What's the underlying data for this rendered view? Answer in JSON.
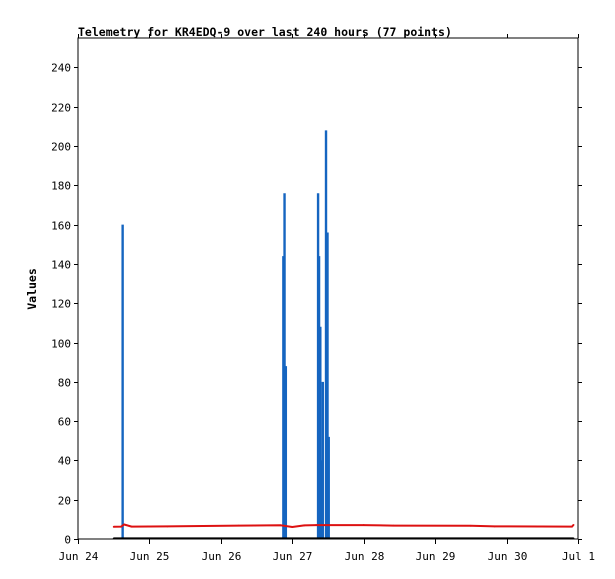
{
  "chart_data": {
    "type": "line",
    "title": "Telemetry for KR4EDQ-9 over last 240 hours (77 points)",
    "xlabel": "",
    "ylabel": "Values",
    "x_range": [
      "2024-06-24",
      "2024-07-01"
    ],
    "x_ticks": [
      {
        "date": "2024-06-24",
        "label": "Jun 24"
      },
      {
        "date": "2024-06-25",
        "label": "Jun 25"
      },
      {
        "date": "2024-06-26",
        "label": "Jun 26"
      },
      {
        "date": "2024-06-27",
        "label": "Jun 27"
      },
      {
        "date": "2024-06-28",
        "label": "Jun 28"
      },
      {
        "date": "2024-06-29",
        "label": "Jun 29"
      },
      {
        "date": "2024-06-30",
        "label": "Jun 30"
      },
      {
        "date": "2024-07-01",
        "label": "Jul 1"
      }
    ],
    "ylim": [
      0,
      255
    ],
    "y_ticks": [
      0,
      20,
      40,
      60,
      80,
      100,
      120,
      140,
      160,
      180,
      200,
      220,
      240
    ],
    "grid": false,
    "legend": "none",
    "series": [
      {
        "color": "#1565c0",
        "style": "impulse",
        "points": [
          {
            "x": "2024-06-24 14:24",
            "y": 0
          },
          {
            "x": "2024-06-24 15:00",
            "y": 160
          },
          {
            "x": "2024-06-26 21:00",
            "y": 144
          },
          {
            "x": "2024-06-26 21:24",
            "y": 176
          },
          {
            "x": "2024-06-26 21:50",
            "y": 88
          },
          {
            "x": "2024-06-27 08:40",
            "y": 176
          },
          {
            "x": "2024-06-27 09:00",
            "y": 144
          },
          {
            "x": "2024-06-27 09:25",
            "y": 108
          },
          {
            "x": "2024-06-27 09:50",
            "y": 40
          },
          {
            "x": "2024-06-27 10:15",
            "y": 80
          },
          {
            "x": "2024-06-27 11:20",
            "y": 208
          },
          {
            "x": "2024-06-27 11:50",
            "y": 156
          },
          {
            "x": "2024-06-27 12:15",
            "y": 52
          }
        ]
      },
      {
        "color": "#dd1111",
        "style": "line",
        "points": [
          {
            "x": "2024-06-24 12:00",
            "y": 6.2
          },
          {
            "x": "2024-06-24 14:30",
            "y": 6.3
          },
          {
            "x": "2024-06-24 15:30",
            "y": 7.4
          },
          {
            "x": "2024-06-24 18:00",
            "y": 6.3
          },
          {
            "x": "2024-06-25 06:00",
            "y": 6.4
          },
          {
            "x": "2024-06-26 06:00",
            "y": 6.8
          },
          {
            "x": "2024-06-26 20:00",
            "y": 7.0
          },
          {
            "x": "2024-06-27 00:00",
            "y": 6.1
          },
          {
            "x": "2024-06-27 04:00",
            "y": 6.9
          },
          {
            "x": "2024-06-27 08:00",
            "y": 7.1
          },
          {
            "x": "2024-06-28 00:00",
            "y": 7.1
          },
          {
            "x": "2024-06-28 10:00",
            "y": 6.8
          },
          {
            "x": "2024-06-29 12:00",
            "y": 6.7
          },
          {
            "x": "2024-06-29 20:00",
            "y": 6.4
          },
          {
            "x": "2024-06-30 22:00",
            "y": 6.3
          },
          {
            "x": "2024-06-30 22:30",
            "y": 7.2
          }
        ]
      },
      {
        "color": "#000000",
        "style": "line",
        "points": [
          {
            "x": "2024-06-24 12:00",
            "y": 0.3
          },
          {
            "x": "2024-06-30 22:30",
            "y": 0.3
          }
        ]
      }
    ]
  }
}
